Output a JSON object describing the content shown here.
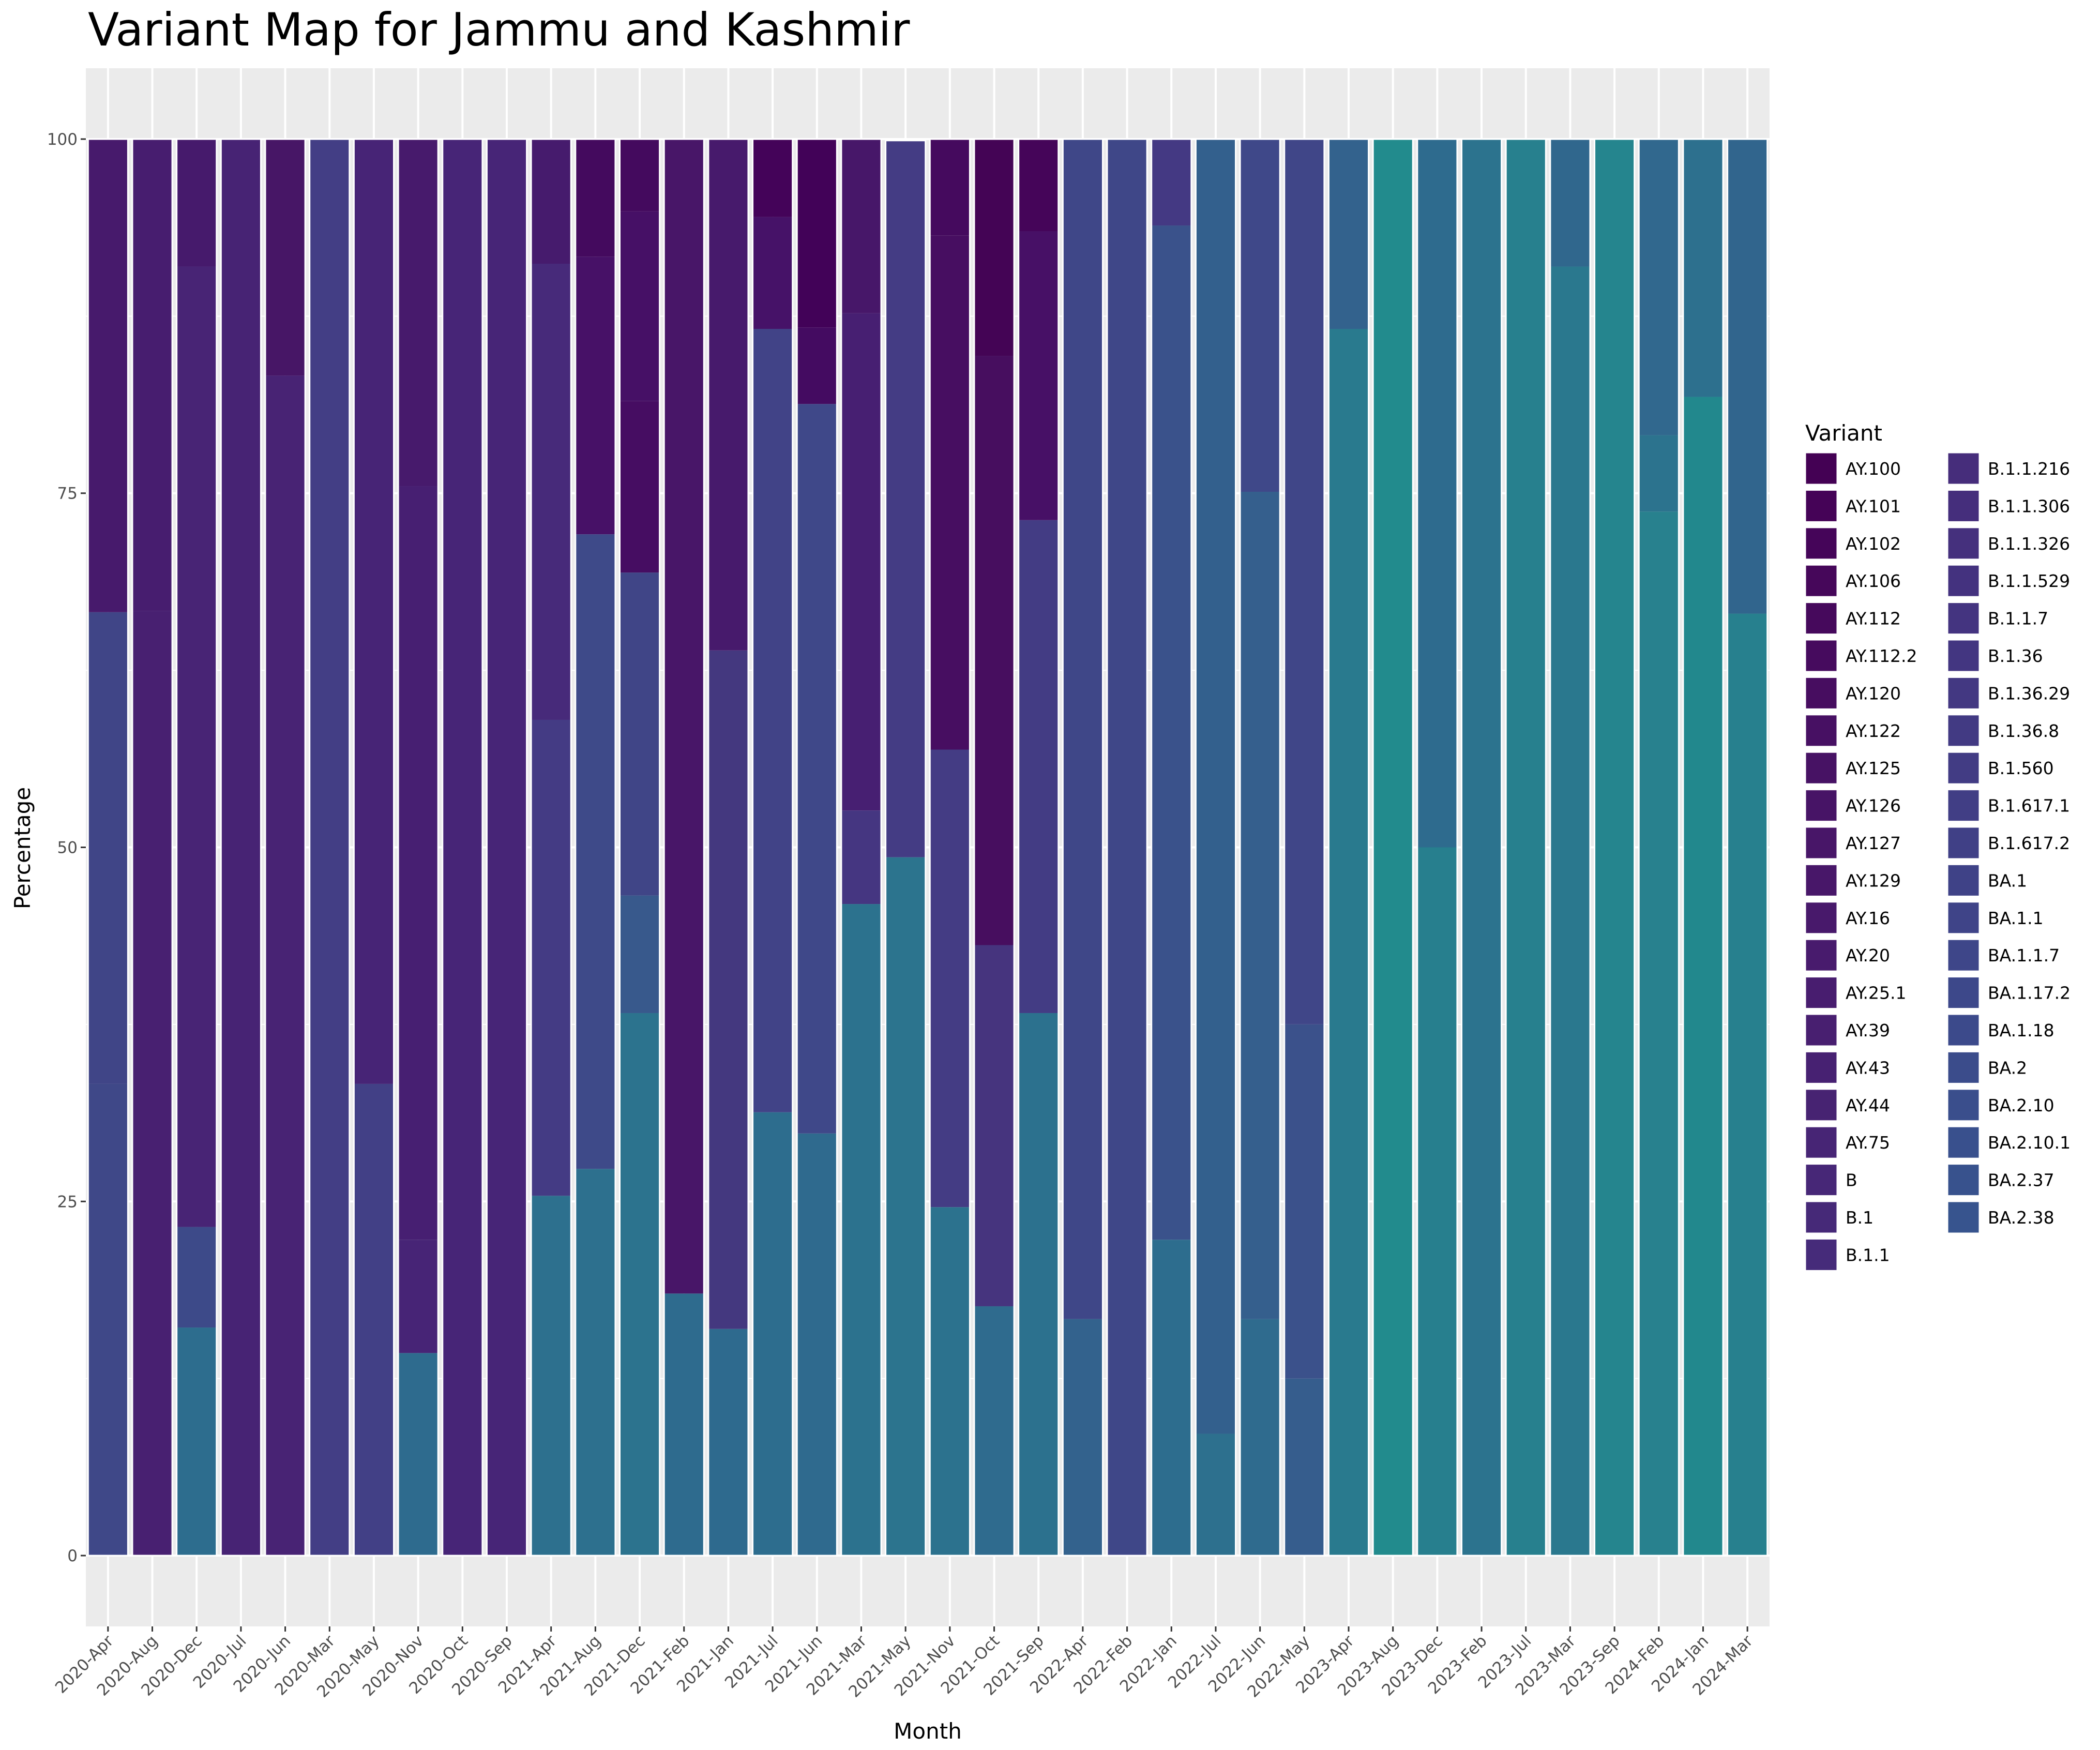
{
  "chart_data": {
    "type": "bar",
    "stacked": true,
    "title": "Variant Map for Jammu and Kashmir",
    "xlabel": "Month",
    "ylabel": "Percentage",
    "ylim": [
      -5,
      105
    ],
    "yticks": [
      0,
      25,
      50,
      75,
      100
    ],
    "ytick_labels": [
      "0",
      "25",
      "50",
      "75",
      "100"
    ],
    "grid": true,
    "legend_position": "right",
    "legend_title": "Variant",
    "variants": [
      "AY.100",
      "AY.101",
      "AY.102",
      "AY.106",
      "AY.112",
      "AY.112.2",
      "AY.120",
      "AY.122",
      "AY.125",
      "AY.126",
      "AY.127",
      "AY.129",
      "AY.16",
      "AY.20",
      "AY.25.1",
      "AY.39",
      "AY.43",
      "AY.44",
      "AY.75",
      "B",
      "B.1",
      "B.1.1",
      "B.1.1.216",
      "B.1.1.306",
      "B.1.1.326",
      "B.1.1.529",
      "B.1.1.7",
      "B.1.36",
      "B.1.36.29",
      "B.1.36.8",
      "B.1.560",
      "B.1.617.1",
      "B.1.617.2",
      "BA.1",
      "BA.1.1",
      "BA.1.1.7",
      "BA.1.17.2",
      "BA.1.18",
      "BA.2",
      "BA.2.10",
      "BA.2.10.1",
      "BA.2.37",
      "BA.2.38"
    ],
    "colors": [
      "#440154",
      "#450357",
      "#450559",
      "#46075A",
      "#46095C",
      "#460B5E",
      "#470D60",
      "#471063",
      "#471264",
      "#471466",
      "#481668",
      "#481769",
      "#48196B",
      "#481B6D",
      "#481D6F",
      "#481F70",
      "#472172",
      "#472372",
      "#472575",
      "#472777",
      "#462978",
      "#462B7A",
      "#462D7B",
      "#452E7C",
      "#45307D",
      "#44327F",
      "#443480",
      "#433681",
      "#433882",
      "#423A83",
      "#423C84",
      "#413E85",
      "#404086",
      "#3F4287",
      "#3F4488",
      "#3E4689",
      "#3D488A",
      "#3C4A8B",
      "#3B4C8B",
      "#3A4E8C",
      "#39508D",
      "#38528D",
      "#37548E"
    ],
    "categories": [
      "2020-Apr",
      "2020-Aug",
      "2020-Dec",
      "2020-Jul",
      "2020-Jun",
      "2020-Mar",
      "2020-May",
      "2020-Nov",
      "2020-Oct",
      "2020-Sep",
      "2021-Apr",
      "2021-Aug",
      "2021-Dec",
      "2021-Feb",
      "2021-Jan",
      "2021-Jul",
      "2021-Jun",
      "2021-Mar",
      "2021-May",
      "2021-Nov",
      "2021-Oct",
      "2021-Sep",
      "2022-Apr",
      "2022-Feb",
      "2022-Jan",
      "2022-Jul",
      "2022-Jun",
      "2022-May",
      "2023-Apr",
      "2023-Aug",
      "2023-Dec",
      "2023-Feb",
      "2023-Jul",
      "2023-Mar",
      "2023-Sep",
      "2024-Feb",
      "2024-Jan",
      "2024-Mar"
    ],
    "stacks": [
      [
        {
          "c": "#3f4888",
          "v": 33.3
        },
        {
          "c": "#404587",
          "v": 33.3
        },
        {
          "c": "#471a6c",
          "v": 33.4
        }
      ],
      [
        {
          "c": "#482071",
          "v": 66.7
        },
        {
          "c": "#471d6f",
          "v": 33.3
        }
      ],
      [
        {
          "c": "#2d6d8e",
          "v": 16.1
        },
        {
          "c": "#3d4a89",
          "v": 7.1
        },
        {
          "c": "#482475",
          "v": 67.8
        },
        {
          "c": "#461a6c",
          "v": 9.0
        }
      ],
      [
        {
          "c": "#472374",
          "v": 100
        }
      ],
      [
        {
          "c": "#482374",
          "v": 83.3
        },
        {
          "c": "#471666",
          "v": 16.7
        }
      ],
      [
        {
          "c": "#433e85",
          "v": 100
        }
      ],
      [
        {
          "c": "#424086",
          "v": 33.3
        },
        {
          "c": "#472476",
          "v": 66.7
        }
      ],
      [
        {
          "c": "#2e6b8e",
          "v": 14.3
        },
        {
          "c": "#472476",
          "v": 8.0
        },
        {
          "c": "#471f72",
          "v": 53.2
        },
        {
          "c": "#471a6c",
          "v": 24.5
        }
      ],
      [
        {
          "c": "#472577",
          "v": 100
        }
      ],
      [
        {
          "c": "#472577",
          "v": 100
        }
      ],
      [
        {
          "c": "#2d708e",
          "v": 25.4
        },
        {
          "c": "#443b84",
          "v": 33.6
        },
        {
          "c": "#472a7a",
          "v": 32.2
        },
        {
          "c": "#461b6d",
          "v": 8.8
        }
      ],
      [
        {
          "c": "#2d708e",
          "v": 27.3
        },
        {
          "c": "#3e4a89",
          "v": 44.8
        },
        {
          "c": "#471167",
          "v": 19.6
        },
        {
          "c": "#440a5e",
          "v": 8.3
        }
      ],
      [
        {
          "c": "#2c738e",
          "v": 38.3
        },
        {
          "c": "#38598c",
          "v": 8.3
        },
        {
          "c": "#404587",
          "v": 22.8
        },
        {
          "c": "#460d62",
          "v": 12.1
        },
        {
          "c": "#461066",
          "v": 13.4
        },
        {
          "c": "#440a5e",
          "v": 5.1
        }
      ],
      [
        {
          "c": "#2e6b8e",
          "v": 18.5
        },
        {
          "c": "#481668",
          "v": 81.5
        }
      ],
      [
        {
          "c": "#2e6a8e",
          "v": 16.0
        },
        {
          "c": "#44387f",
          "v": 47.9
        },
        {
          "c": "#471a6c",
          "v": 36.1
        }
      ],
      [
        {
          "c": "#2d6d8e",
          "v": 31.3
        },
        {
          "c": "#414387",
          "v": 55.3
        },
        {
          "c": "#461268",
          "v": 7.9
        },
        {
          "c": "#440359",
          "v": 5.5
        }
      ],
      [
        {
          "c": "#2f6a8e",
          "v": 29.8
        },
        {
          "c": "#3f4889",
          "v": 51.5
        },
        {
          "c": "#440b61",
          "v": 5.4
        },
        {
          "c": "#420258",
          "v": 13.3
        }
      ],
      [
        {
          "c": "#2c728e",
          "v": 46.0
        },
        {
          "c": "#453681",
          "v": 6.6
        },
        {
          "c": "#471f72",
          "v": 35.1
        },
        {
          "c": "#471769",
          "v": 12.3
        }
      ],
      [
        {
          "c": "#2c748e",
          "v": 49.3
        },
        {
          "c": "#443c84",
          "v": 50.6
        }
      ],
      [
        {
          "c": "#2c728e",
          "v": 24.6
        },
        {
          "c": "#443c84",
          "v": 32.3
        },
        {
          "c": "#470e61",
          "v": 36.3
        },
        {
          "c": "#450a5e",
          "v": 6.8
        }
      ],
      [
        {
          "c": "#2f6b8e",
          "v": 17.6
        },
        {
          "c": "#46347e",
          "v": 25.5
        },
        {
          "c": "#470e5f",
          "v": 41.6
        },
        {
          "c": "#440455",
          "v": 15.3
        }
      ],
      [
        {
          "c": "#2c718e",
          "v": 38.3
        },
        {
          "c": "#433c84",
          "v": 34.8
        },
        {
          "c": "#471066",
          "v": 20.4
        },
        {
          "c": "#450559",
          "v": 6.5
        }
      ],
      [
        {
          "c": "#33628d",
          "v": 16.7
        },
        {
          "c": "#3f4788",
          "v": 83.3
        }
      ],
      [
        {
          "c": "#3f4788",
          "v": 100
        }
      ],
      [
        {
          "c": "#2d6d8e",
          "v": 22.3
        },
        {
          "c": "#3a528b",
          "v": 71.6
        },
        {
          "c": "#443983",
          "v": 6.1
        }
      ],
      [
        {
          "c": "#2d708e",
          "v": 8.6
        },
        {
          "c": "#33608d",
          "v": 91.4
        }
      ],
      [
        {
          "c": "#2f6b8e",
          "v": 16.7
        },
        {
          "c": "#355f8d",
          "v": 58.4
        },
        {
          "c": "#3f4889",
          "v": 24.9
        }
      ],
      [
        {
          "c": "#365d8d",
          "v": 12.5
        },
        {
          "c": "#3b518b",
          "v": 25.0
        },
        {
          "c": "#404688",
          "v": 62.5
        }
      ],
      [
        {
          "c": "#297a8e",
          "v": 86.6
        },
        {
          "c": "#33628d",
          "v": 13.4
        }
      ],
      [
        {
          "c": "#228b8d",
          "v": 100
        }
      ],
      [
        {
          "c": "#277f8e",
          "v": 50.0
        },
        {
          "c": "#2e6b8e",
          "v": 50.0
        }
      ],
      [
        {
          "c": "#2c738e",
          "v": 100
        }
      ],
      [
        {
          "c": "#27808e",
          "v": 100
        }
      ],
      [
        {
          "c": "#2a788e",
          "v": 91.0
        },
        {
          "c": "#30678d",
          "v": 9.0
        }
      ],
      [
        {
          "c": "#25858e",
          "v": 100
        }
      ],
      [
        {
          "c": "#28818e",
          "v": 73.7
        },
        {
          "c": "#2c738e",
          "v": 5.4
        },
        {
          "c": "#31688e",
          "v": 20.9
        }
      ],
      [
        {
          "c": "#22888d",
          "v": 81.8
        },
        {
          "c": "#2d708e",
          "v": 18.2
        }
      ],
      [
        {
          "c": "#27808e",
          "v": 66.5
        },
        {
          "c": "#31658d",
          "v": 33.5
        }
      ]
    ]
  }
}
